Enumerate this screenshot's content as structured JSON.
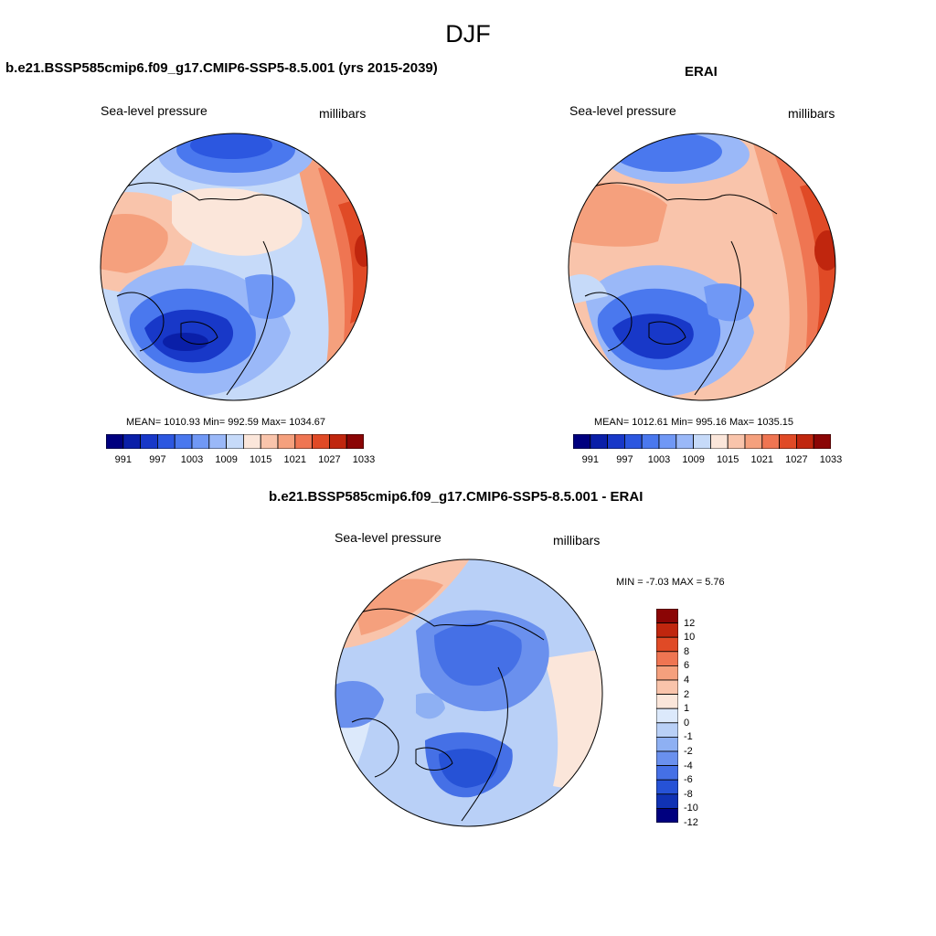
{
  "chart_data": [
    {
      "type": "heatmap",
      "projection": "north-polar-stereographic",
      "season": "DJF",
      "title": "b.e21.BSSP585cmip6.f09_g17.CMIP6-SSP5-8.5.001 (yrs 2015-2039)",
      "left_label": "Sea-level pressure",
      "right_label": "millibars",
      "stats_text": "MEAN= 1010.93  Min= 992.59  Max= 1034.67",
      "mean": 1010.93,
      "min": 992.59,
      "max": 1034.67,
      "colorbar_levels": [
        991,
        994,
        997,
        1000,
        1003,
        1006,
        1009,
        1012,
        1015,
        1018,
        1021,
        1024,
        1027,
        1030,
        1033
      ],
      "colorbar_tick_labels": [
        "991",
        "997",
        "1003",
        "1009",
        "1015",
        "1021",
        "1027",
        "1033"
      ]
    },
    {
      "type": "heatmap",
      "projection": "north-polar-stereographic",
      "season": "DJF",
      "title": "ERAI",
      "left_label": "Sea-level pressure",
      "right_label": "millibars",
      "stats_text": "MEAN= 1012.61  Min= 995.16  Max= 1035.15",
      "mean": 1012.61,
      "min": 995.16,
      "max": 1035.15,
      "colorbar_levels": [
        991,
        994,
        997,
        1000,
        1003,
        1006,
        1009,
        1012,
        1015,
        1018,
        1021,
        1024,
        1027,
        1030,
        1033
      ],
      "colorbar_tick_labels": [
        "991",
        "997",
        "1003",
        "1009",
        "1015",
        "1021",
        "1027",
        "1033"
      ]
    },
    {
      "type": "heatmap",
      "projection": "north-polar-stereographic",
      "season": "DJF",
      "title": "b.e21.BSSP585cmip6.f09_g17.CMIP6-SSP5-8.5.001 - ERAI",
      "left_label": "Sea-level pressure",
      "right_label": "millibars",
      "stats_text": "MIN =  -7.03 MAX =   5.76",
      "min": -7.03,
      "max": 5.76,
      "colorbar_levels": [
        -12,
        -10,
        -8,
        -6,
        -4,
        -2,
        -1,
        0,
        1,
        2,
        4,
        6,
        8,
        10,
        12
      ],
      "colorbar_tick_labels": [
        "12",
        "10",
        "8",
        "6",
        "4",
        "2",
        "1",
        "0",
        "-1",
        "-2",
        "-4",
        "-6",
        "-8",
        "-10",
        "-12"
      ]
    }
  ],
  "page": {
    "main_title": "DJF"
  },
  "palette": [
    "#00007f",
    "#0a1fa8",
    "#1838c8",
    "#2c57e0",
    "#4a78ee",
    "#7098f5",
    "#9ab8f8",
    "#c6daf9",
    "#fbe6da",
    "#f9c4ab",
    "#f5a07d",
    "#ef7552",
    "#e04a26",
    "#c0260e",
    "#8b0505"
  ],
  "palette_vertical": [
    "#8b0505",
    "#c0260e",
    "#e04a26",
    "#ef7552",
    "#f5a07d",
    "#f9c4ab",
    "#fbe6da",
    "#dce9fb",
    "#b9d0f7",
    "#8eb0f3",
    "#6a90ee",
    "#4570e6",
    "#2652d6",
    "#1032b4",
    "#00007f"
  ]
}
